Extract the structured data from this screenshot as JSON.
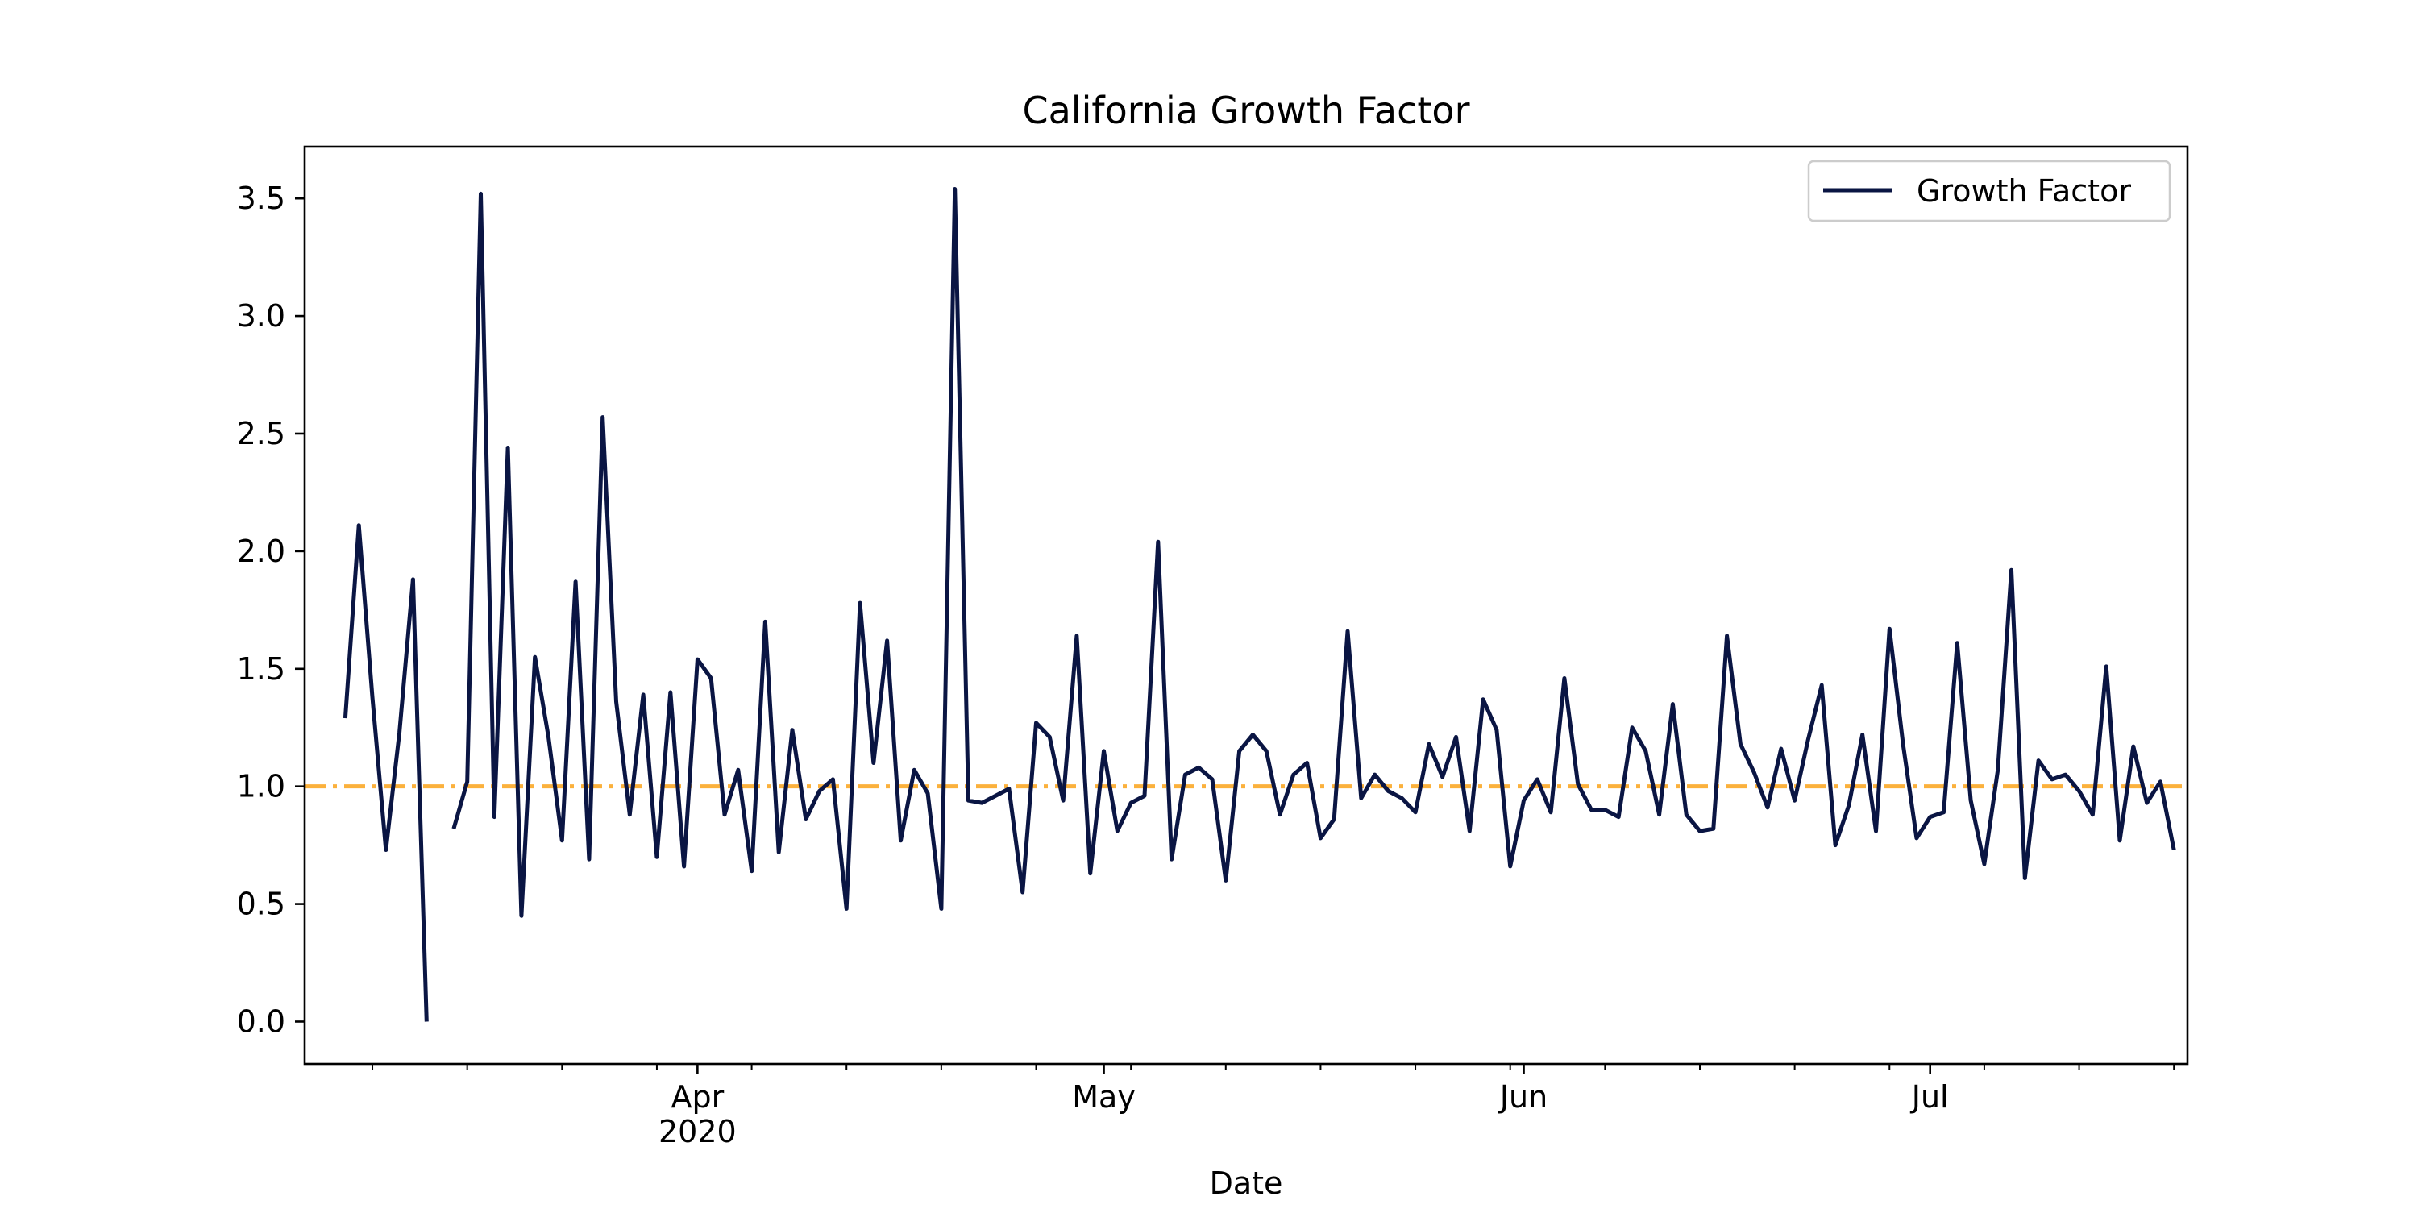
{
  "chart_data": {
    "type": "line",
    "title": "California Growth Factor",
    "xlabel": "Date",
    "ylabel": "",
    "xlim": [
      "2020-03-03",
      "2020-07-20"
    ],
    "ylim": [
      -0.18,
      3.72
    ],
    "grid": false,
    "legend_position": "top-right",
    "x_major_ticks": [
      {
        "date": "2020-04-01",
        "label": "Apr",
        "sublabel": "2020"
      },
      {
        "date": "2020-05-01",
        "label": "May",
        "sublabel": ""
      },
      {
        "date": "2020-06-01",
        "label": "Jun",
        "sublabel": ""
      },
      {
        "date": "2020-07-01",
        "label": "Jul",
        "sublabel": ""
      }
    ],
    "x_minor_ticks": [
      "2020-03-08",
      "2020-03-15",
      "2020-03-22",
      "2020-03-29",
      "2020-04-05",
      "2020-04-12",
      "2020-04-19",
      "2020-04-26",
      "2020-05-03",
      "2020-05-10",
      "2020-05-17",
      "2020-05-24",
      "2020-05-31",
      "2020-06-07",
      "2020-06-14",
      "2020-06-21",
      "2020-06-28",
      "2020-07-05",
      "2020-07-12",
      "2020-07-19"
    ],
    "y_ticks": [
      {
        "value": 0.0,
        "label": "0.0"
      },
      {
        "value": 0.5,
        "label": "0.5"
      },
      {
        "value": 1.0,
        "label": "1.0"
      },
      {
        "value": 1.5,
        "label": "1.5"
      },
      {
        "value": 2.0,
        "label": "2.0"
      },
      {
        "value": 2.5,
        "label": "2.5"
      },
      {
        "value": 3.0,
        "label": "3.0"
      },
      {
        "value": 3.5,
        "label": "3.5"
      }
    ],
    "reference_line": {
      "y": 1.0,
      "color": "#fbb13c",
      "style": "dash-dot"
    },
    "series": [
      {
        "name": "Growth Factor",
        "color": "#0a1543",
        "start_date": "2020-03-06",
        "values": [
          1.29,
          2.11,
          1.38,
          0.73,
          1.23,
          1.88,
          0.0,
          null,
          0.82,
          1.02,
          3.52,
          0.87,
          2.44,
          0.45,
          1.55,
          1.21,
          0.77,
          1.87,
          0.69,
          2.57,
          1.36,
          0.88,
          1.39,
          0.7,
          1.4,
          0.66,
          1.54,
          1.46,
          0.88,
          1.07,
          0.64,
          1.7,
          0.72,
          1.24,
          0.86,
          0.98,
          1.03,
          0.48,
          1.78,
          1.1,
          1.62,
          0.77,
          1.07,
          0.97,
          0.48,
          3.54,
          0.94,
          0.93,
          0.96,
          0.99,
          0.55,
          1.27,
          1.21,
          0.94,
          1.64,
          0.63,
          1.15,
          0.81,
          0.93,
          0.96,
          2.04,
          0.69,
          1.05,
          1.08,
          1.03,
          0.6,
          1.15,
          1.22,
          1.15,
          0.88,
          1.05,
          1.1,
          0.78,
          0.86,
          1.66,
          0.95,
          1.05,
          0.98,
          0.95,
          0.89,
          1.18,
          1.04,
          1.21,
          0.81,
          1.37,
          1.24,
          0.66,
          0.94,
          1.03,
          0.89,
          1.46,
          1.01,
          0.9,
          0.9,
          0.87,
          1.25,
          1.15,
          0.88,
          1.35,
          0.88,
          0.81,
          0.82,
          1.64,
          1.18,
          1.06,
          0.91,
          1.16,
          0.94,
          1.2,
          1.43,
          0.75,
          0.92,
          1.22,
          0.81,
          1.67,
          1.18,
          0.78,
          0.87,
          0.89,
          1.61,
          0.94,
          0.67,
          1.07,
          1.92,
          0.61,
          1.11,
          1.03,
          1.05,
          0.98,
          0.88,
          1.51,
          0.77,
          1.17,
          0.93,
          1.02,
          0.73
        ]
      }
    ]
  }
}
